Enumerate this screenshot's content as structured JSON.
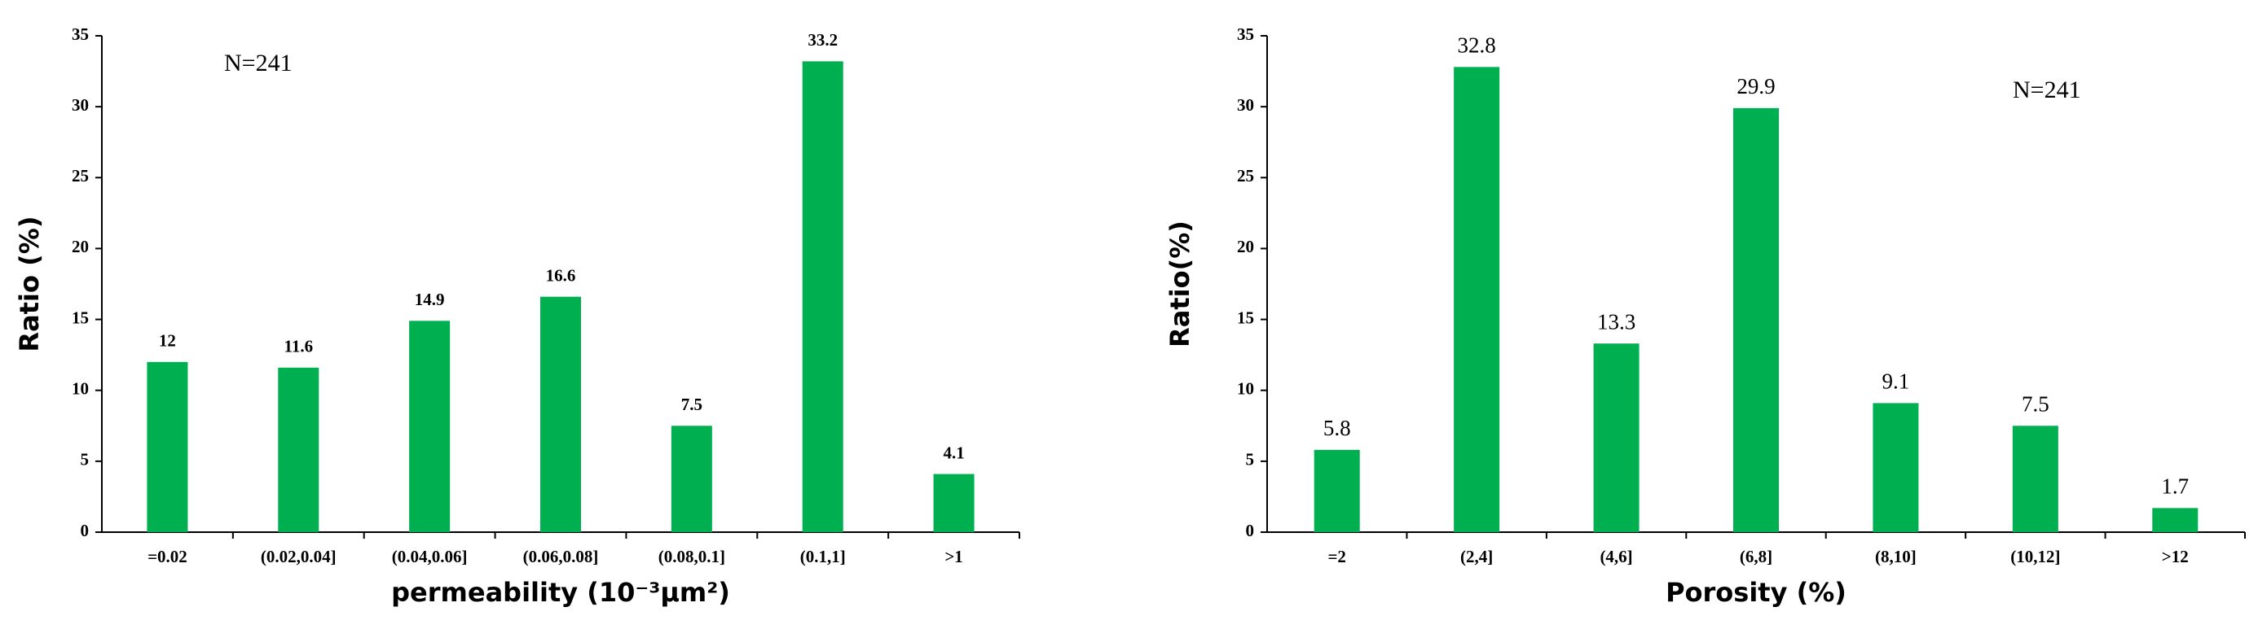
{
  "chart_data": [
    {
      "type": "bar",
      "annotation": "N=241",
      "x_label": "permeability (10⁻³μm²)",
      "y_label": "Ratio (%)",
      "categories": [
        "=0.02",
        "(0.02,0.04]",
        "(0.04,0.06]",
        "(0.06,0.08]",
        "(0.08,0.1]",
        "(0.1,1]",
        ">1"
      ],
      "values": [
        12,
        11.6,
        14.9,
        16.6,
        7.5,
        33.2,
        4.1
      ],
      "color": "#00b050",
      "ylim": [
        0,
        35
      ],
      "yticks": [
        0,
        5,
        10,
        15,
        20,
        25,
        30,
        35
      ]
    },
    {
      "type": "bar",
      "annotation": "N=241",
      "x_label": "Porosity (%)",
      "y_label": "Ratio(%)",
      "categories": [
        "=2",
        "(2,4]",
        "(4,6]",
        "(6,8]",
        "(8,10]",
        "(10,12]",
        ">12"
      ],
      "values": [
        5.8,
        32.8,
        13.3,
        29.9,
        9.1,
        7.5,
        1.7
      ],
      "color": "#00b050",
      "ylim": [
        0,
        35
      ],
      "yticks": [
        0,
        5,
        10,
        15,
        20,
        25,
        30,
        35
      ]
    }
  ]
}
